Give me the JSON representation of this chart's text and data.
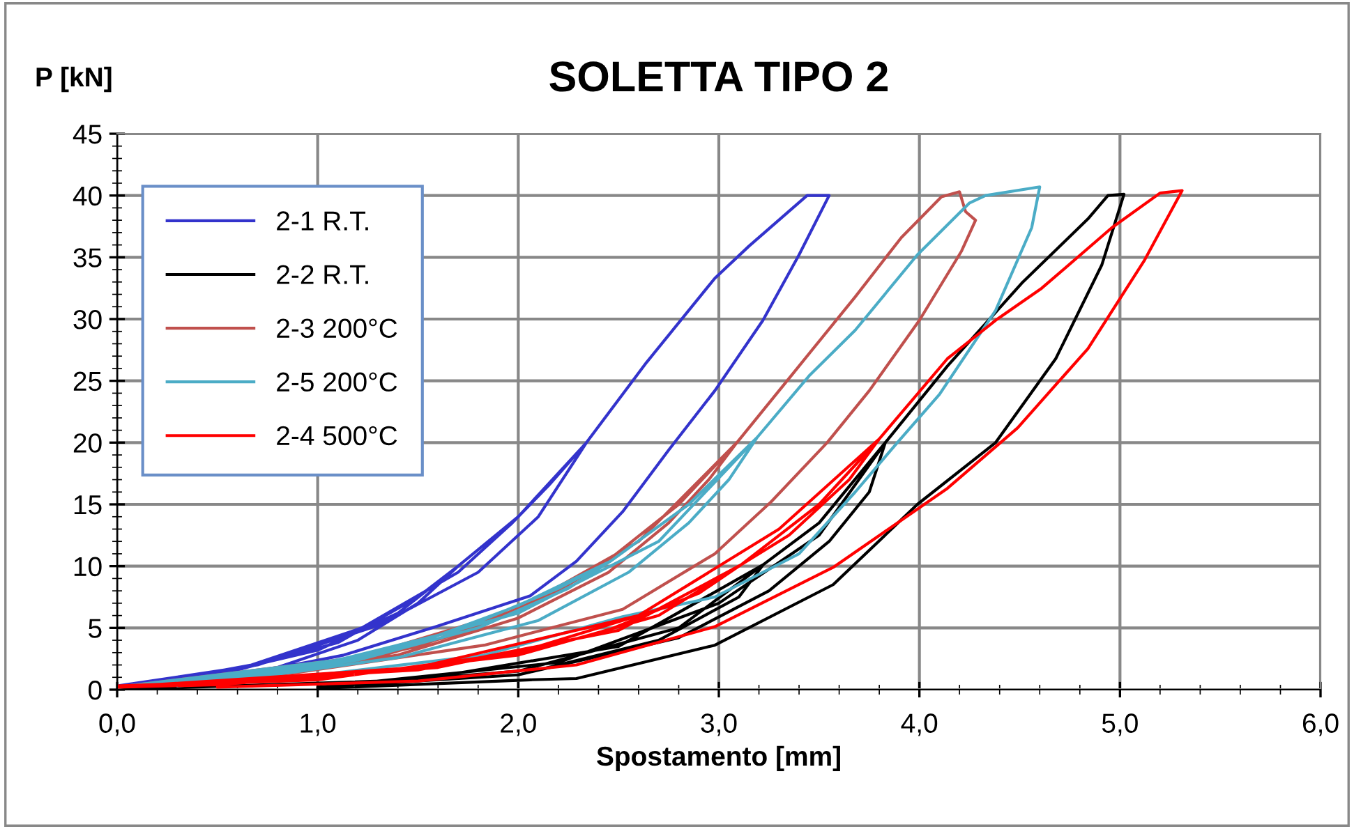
{
  "chart_data": {
    "type": "line",
    "title": "SOLETTA TIPO 2",
    "xlabel": "Spostamento [mm]",
    "ylabel": "P [kN]",
    "xlim": [
      0,
      6
    ],
    "ylim": [
      0,
      45
    ],
    "xticks": [
      {
        "value": 0,
        "label": "0,0"
      },
      {
        "value": 1,
        "label": "1,0"
      },
      {
        "value": 2,
        "label": "2,0"
      },
      {
        "value": 3,
        "label": "3,0"
      },
      {
        "value": 4,
        "label": "4,0"
      },
      {
        "value": 5,
        "label": "5,0"
      },
      {
        "value": 6,
        "label": "6,0"
      }
    ],
    "yticks": [
      0,
      5,
      10,
      15,
      20,
      25,
      30,
      35,
      40,
      45
    ],
    "grid": true,
    "legend": "top left",
    "marker": "none",
    "line_style": "solid",
    "series": [
      {
        "name": "2-1 R.T.",
        "color": "#3333cc",
        "x": [
          0,
          0.5,
          1.0,
          1.4,
          1.7,
          1.5,
          1.2,
          0.8,
          0.3,
          0,
          0.6,
          1.1,
          1.5,
          1.7,
          2.0,
          2.34,
          2.15,
          1.97,
          1.7,
          1.22,
          0.67,
          0.2,
          0,
          0.7,
          1.3,
          1.8,
          2.1,
          2.34,
          2.64,
          2.98,
          3.15,
          3.44,
          3.55,
          3.4,
          3.22,
          2.98,
          2.75,
          2.52,
          2.29,
          2.06,
          1.59,
          1.13,
          0.44,
          0.2
        ],
        "values": [
          0.3,
          1.3,
          3.2,
          6.2,
          10,
          7.0,
          4.0,
          1.8,
          0.5,
          0.3,
          1.6,
          3.8,
          7.5,
          10,
          14,
          20,
          16.5,
          13.5,
          9.5,
          5.0,
          2.0,
          0.6,
          0.3,
          2.0,
          5.2,
          9.5,
          14,
          20,
          26.5,
          33.3,
          35.9,
          40,
          40,
          35.2,
          29.9,
          24.2,
          19.4,
          14.4,
          10.4,
          7.6,
          5.1,
          2.8,
          0.6,
          0.3
        ]
      },
      {
        "name": "2-2 R.T.",
        "color": "#000000",
        "x": [
          0,
          1.5,
          2.5,
          3.22,
          3.1,
          2.7,
          2.0,
          1.0,
          2.0,
          2.8,
          3.22,
          3.5,
          3.83,
          3.75,
          3.55,
          3.25,
          2.8,
          2.0,
          1.0,
          2.2,
          3.0,
          3.5,
          3.83,
          4.14,
          4.51,
          4.84,
          4.94,
          5.02,
          4.91,
          4.68,
          4.38,
          3.99,
          3.57,
          2.98,
          2.29,
          2.06,
          1.0
        ],
        "values": [
          0,
          0.8,
          3.5,
          10.1,
          7.5,
          4.0,
          1.2,
          0.2,
          1.5,
          5.0,
          10.1,
          13.5,
          20,
          16,
          12,
          8,
          4.2,
          1.2,
          0.2,
          2.2,
          7,
          12.5,
          20,
          26.2,
          32.9,
          38.1,
          40,
          40.1,
          34.4,
          26.8,
          20,
          15,
          8.5,
          3.6,
          0.9,
          0.8,
          0.1
        ]
      },
      {
        "name": "2-3 200°C",
        "color": "#c0504d",
        "x": [
          0,
          0.8,
          1.5,
          2.0,
          2.4,
          2.2,
          1.8,
          1.2,
          0.5,
          0,
          1.0,
          1.7,
          2.2,
          2.45,
          2.8,
          3.09,
          2.95,
          2.75,
          2.45,
          2.0,
          1.4,
          0.6,
          0,
          1.2,
          2.0,
          2.6,
          3.09,
          3.36,
          3.68,
          3.91,
          4.11,
          4.2,
          4.23,
          4.28,
          4.21,
          4.0,
          3.75,
          3.54,
          3.26,
          2.98,
          2.52,
          1.83,
          0.9,
          0.3
        ],
        "values": [
          0.2,
          1.2,
          3.5,
          6.5,
          10,
          8.0,
          5.0,
          2.2,
          0.6,
          0.2,
          1.8,
          4.5,
          8.0,
          10.5,
          15,
          20,
          17,
          13.5,
          9.5,
          5.8,
          2.8,
          0.8,
          0.2,
          2.6,
          6.5,
          12,
          20,
          25.4,
          31.8,
          36.6,
          39.9,
          40.3,
          38.7,
          38.0,
          35.5,
          29.9,
          24.2,
          20,
          15.2,
          11.0,
          6.5,
          3.6,
          1.4,
          0.4
        ]
      },
      {
        "name": "2-5 200°C",
        "color": "#4bacc6",
        "x": [
          0,
          0.8,
          1.5,
          2.0,
          2.46,
          2.25,
          1.8,
          1.2,
          0.5,
          0,
          1.0,
          1.7,
          2.2,
          2.46,
          2.85,
          3.19,
          3.05,
          2.85,
          2.55,
          2.1,
          1.4,
          0.6,
          0,
          1.2,
          2.0,
          2.7,
          3.19,
          3.45,
          3.68,
          3.99,
          4.25,
          4.33,
          4.6,
          4.56,
          4.38,
          4.1,
          3.89,
          3.68,
          3.4,
          2.98,
          2.52,
          1.83,
          0.9,
          0.3
        ],
        "values": [
          0.2,
          1.4,
          3.8,
          6.8,
          10.4,
          8.2,
          5.0,
          2.4,
          0.7,
          0.2,
          2.0,
          4.8,
          8.2,
          10.4,
          15,
          20.4,
          17,
          13.5,
          9.5,
          5.6,
          2.6,
          0.8,
          0.2,
          2.6,
          6.2,
          12,
          20.4,
          25.4,
          29.1,
          35.2,
          39.4,
          40,
          40.7,
          37.4,
          30.7,
          23.9,
          20,
          16,
          11,
          7.5,
          5.9,
          2.8,
          1.0,
          0.3
        ]
      },
      {
        "name": "2-4 500°C",
        "color": "#ff0000",
        "x": [
          0,
          1.0,
          2.0,
          2.7,
          3.11,
          2.9,
          2.4,
          1.6,
          0.5,
          0,
          1.5,
          2.5,
          3.11,
          3.5,
          3.8,
          3.65,
          3.35,
          2.8,
          2.0,
          1.0,
          0,
          1.5,
          2.6,
          3.3,
          3.8,
          4.14,
          4.38,
          4.61,
          4.96,
          5.2,
          5.31,
          5.12,
          4.84,
          4.49,
          4.14,
          3.57,
          2.98,
          2.29,
          1.5,
          0.5
        ],
        "values": [
          0.3,
          0.9,
          2.8,
          6,
          10.1,
          7.8,
          4.5,
          1.8,
          0.4,
          0.2,
          1.6,
          4.8,
          10.1,
          15,
          20.3,
          17,
          12.5,
          7,
          3.0,
          0.8,
          0.2,
          1.8,
          6,
          13,
          20.3,
          26.8,
          29.9,
          32.5,
          37.4,
          40.2,
          40.4,
          34.7,
          27.6,
          21.2,
          16.3,
          9.9,
          5.1,
          2.0,
          0.7,
          0.2
        ]
      }
    ]
  }
}
